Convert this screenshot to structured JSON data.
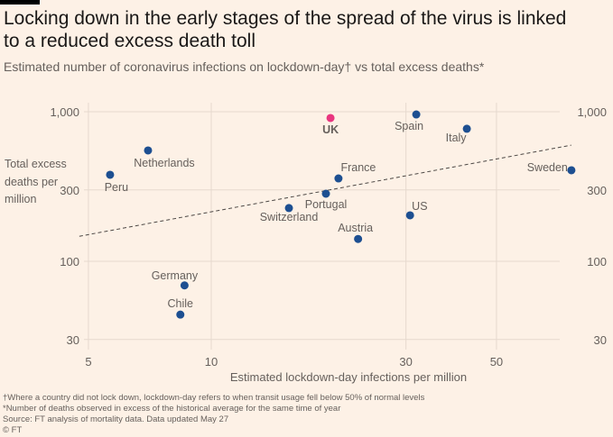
{
  "header": {
    "title": "Locking down in the early stages of the spread of the virus is linked to a reduced excess death toll",
    "subtitle": "Estimated number of coronavirus infections on lockdown-day† vs total excess deaths*"
  },
  "footer": {
    "notes": [
      "†Where a country did not lock down, lockdown-day refers to when transit usage fell below 50% of normal levels",
      "*Number of deaths observed in excess of the historical average for the same time of year",
      "Source: FT analysis of mortality data. Data updated May 27",
      "© FT"
    ]
  },
  "colors": {
    "point": "#1d4f91",
    "highlight": "#e9357f",
    "grid": "#e6d9ce",
    "trend": "#4d4845"
  },
  "chart_data": {
    "type": "scatter",
    "title": "Locking down in the early stages of the spread of the virus is linked to a reduced excess death toll",
    "subtitle": "Estimated number of coronavirus infections on lockdown-day† vs total excess deaths*",
    "xlabel": "Estimated lockdown-day infections per million",
    "ylabel": "Total excess deaths per million",
    "xscale": "log",
    "yscale": "log",
    "xlim": [
      4.5,
      80
    ],
    "ylim": [
      25,
      1150
    ],
    "xticks": [
      5,
      10,
      30,
      50
    ],
    "xtick_labels": [
      "5",
      "10",
      "30",
      "50"
    ],
    "yticks": [
      30,
      100,
      300,
      1000
    ],
    "ytick_labels": [
      "30",
      "100",
      "300",
      "1,000"
    ],
    "grid": true,
    "points": [
      {
        "name": "UK",
        "x": 19.6,
        "y": 908,
        "highlight": true
      },
      {
        "name": "Spain",
        "x": 31.8,
        "y": 959
      },
      {
        "name": "Italy",
        "x": 42.3,
        "y": 769
      },
      {
        "name": "Netherlands",
        "x": 7.0,
        "y": 551
      },
      {
        "name": "Sweden",
        "x": 76.3,
        "y": 406
      },
      {
        "name": "Peru",
        "x": 5.65,
        "y": 379
      },
      {
        "name": "France",
        "x": 20.5,
        "y": 358
      },
      {
        "name": "Portugal",
        "x": 19.1,
        "y": 283
      },
      {
        "name": "Switzerland",
        "x": 15.5,
        "y": 227
      },
      {
        "name": "US",
        "x": 30.7,
        "y": 203
      },
      {
        "name": "Austria",
        "x": 22.9,
        "y": 141
      },
      {
        "name": "Germany",
        "x": 8.6,
        "y": 69
      },
      {
        "name": "Chile",
        "x": 8.4,
        "y": 44
      }
    ],
    "trendline": {
      "x": [
        4.75,
        76.3
      ],
      "y": [
        147,
        598
      ],
      "style": "dashed"
    }
  }
}
